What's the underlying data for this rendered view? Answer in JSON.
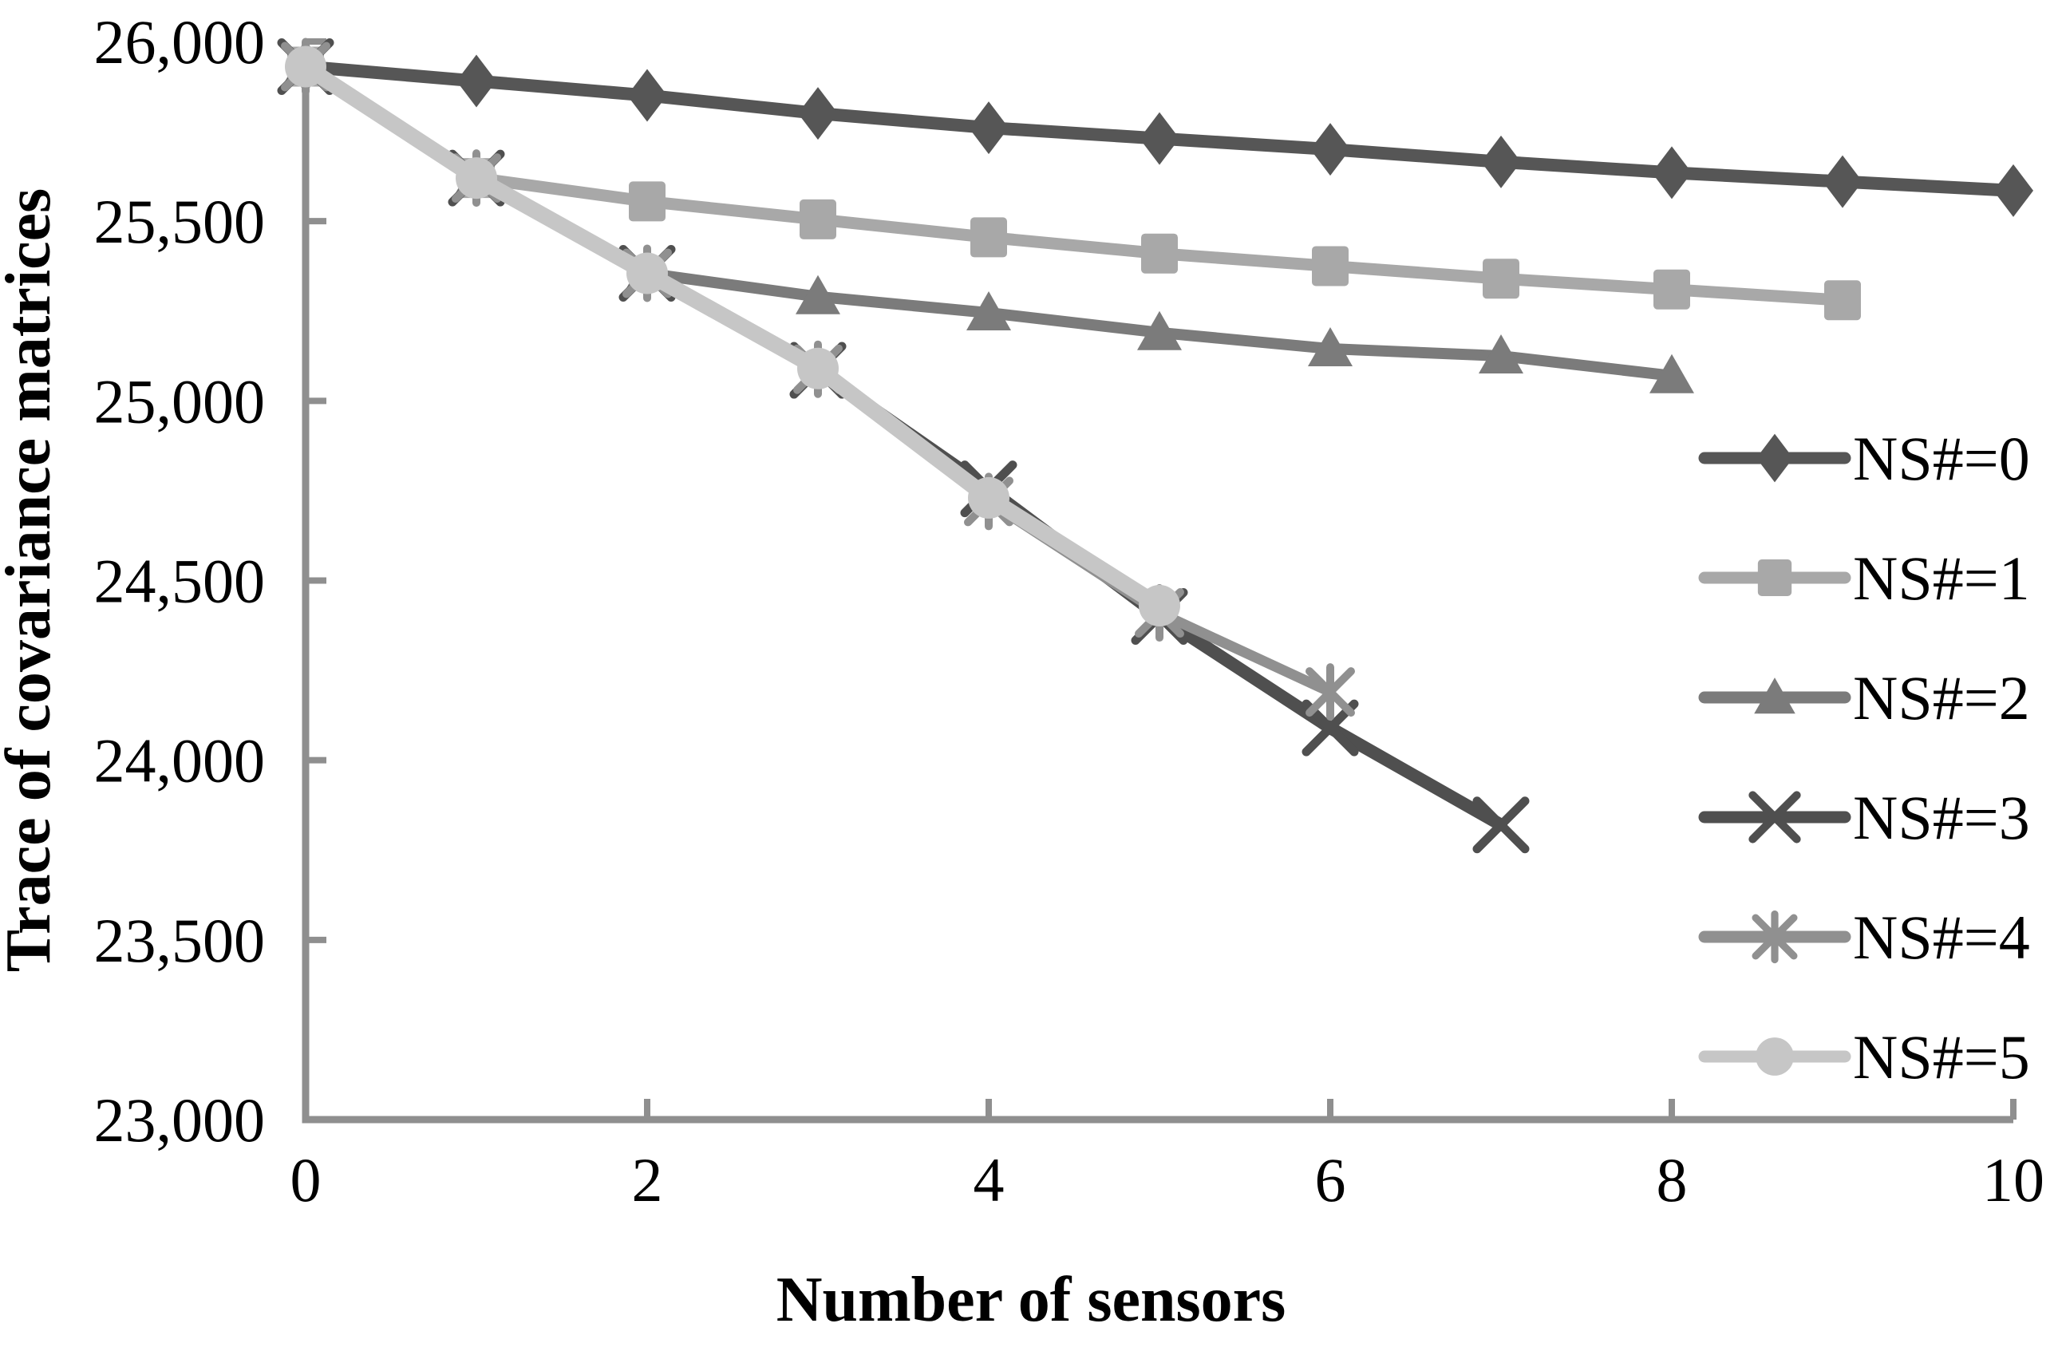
{
  "chart_data": {
    "type": "line",
    "title": "",
    "xlabel": "Number of sensors",
    "ylabel": "Trace of covariance matrices",
    "xlim": [
      0,
      10
    ],
    "ylim": [
      23000,
      26000
    ],
    "grid": false,
    "legend_position": "right-middle",
    "axis_color": "#8f8f8f",
    "text_color": "#000000",
    "x_ticks": [
      0,
      2,
      4,
      6,
      8,
      10
    ],
    "x_tick_labels": [
      "0",
      "2",
      "4",
      "6",
      "8",
      "10"
    ],
    "y_ticks": [
      26000,
      25500,
      25000,
      24500,
      24000,
      23500,
      23000
    ],
    "y_tick_labels": [
      "26,000",
      "25,500",
      "25,000",
      "24,500",
      "24,000",
      "23,500",
      "23,000"
    ],
    "series": [
      {
        "name": "NS#=0",
        "marker": "diamond",
        "color": "#565656",
        "line_width": 16,
        "x": [
          0,
          1,
          2,
          3,
          4,
          5,
          6,
          7,
          8,
          9,
          10
        ],
        "values": [
          25930,
          25890,
          25850,
          25800,
          25760,
          25730,
          25700,
          25665,
          25635,
          25610,
          25585
        ]
      },
      {
        "name": "NS#=1",
        "marker": "square",
        "color": "#a8a8a8",
        "line_width": 15,
        "x": [
          0,
          1,
          2,
          3,
          4,
          5,
          6,
          7,
          8,
          9
        ],
        "values": [
          25930,
          25620,
          25555,
          25505,
          25455,
          25410,
          25375,
          25340,
          25310,
          25280
        ]
      },
      {
        "name": "NS#=2",
        "marker": "triangle",
        "color": "#7b7b7b",
        "line_width": 14,
        "x": [
          0,
          1,
          2,
          3,
          4,
          5,
          6,
          7,
          8
        ],
        "values": [
          25930,
          25620,
          25355,
          25290,
          25245,
          25190,
          25145,
          25125,
          25070
        ]
      },
      {
        "name": "NS#=3",
        "marker": "x",
        "color": "#4f4f4f",
        "line_width": 16,
        "x": [
          0,
          1,
          2,
          3,
          4,
          5,
          6,
          7
        ],
        "values": [
          25930,
          25620,
          25355,
          25085,
          24755,
          24400,
          24090,
          23820
        ]
      },
      {
        "name": "NS#=4",
        "marker": "asterisk",
        "color": "#909090",
        "line_width": 13,
        "x": [
          0,
          1,
          2,
          3,
          4,
          5,
          6
        ],
        "values": [
          25930,
          25620,
          25355,
          25088,
          24720,
          24410,
          24190
        ]
      },
      {
        "name": "NS#=5",
        "marker": "circle",
        "color": "#c6c6c6",
        "line_width": 20,
        "x": [
          0,
          1,
          2,
          3,
          4,
          5
        ],
        "values": [
          25930,
          25620,
          25355,
          25090,
          24730,
          24430
        ]
      }
    ]
  }
}
